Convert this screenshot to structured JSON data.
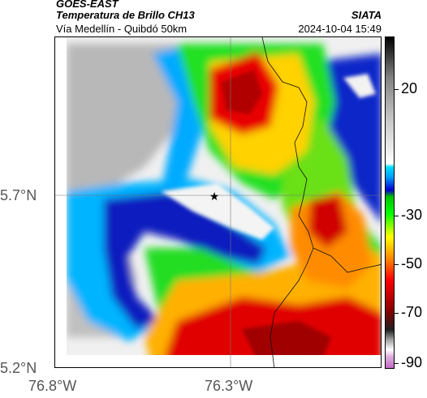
{
  "header": {
    "source": "GOES-EAST",
    "title": "Temperatura de Brillo CH13",
    "org": "SIATA",
    "subtitle": "Vía Medellín - Quibdó 50km",
    "datetime": "2024-10-04 15:49"
  },
  "axes": {
    "lat_labels": [
      "5.7°N",
      "5.2°N"
    ],
    "lon_labels": [
      "76.8°W",
      "76.3°W"
    ]
  },
  "colorbar": {
    "labels": [
      "20",
      "-30",
      "-50",
      "-70",
      "-90"
    ],
    "range": [
      -95,
      35
    ],
    "colors": [
      "#c060c0",
      "#ffffff",
      "#a0a0a0",
      "#202020",
      "#8b0000",
      "#ff0000",
      "#ffff00",
      "#00ff00",
      "#0000ff",
      "#00c0ff",
      "#ffffff",
      "#909090",
      "#000000"
    ]
  },
  "map": {
    "marker": "star-marker",
    "colors": {
      "cold_cloud_red": "#e80000",
      "dark_red": "#a00000",
      "orange": "#ff8c00",
      "yellow": "#ffe600",
      "green": "#1ee81e",
      "cyan": "#00c8ff",
      "blue": "#0a1ebe",
      "warm_gray": "#c8c8c8",
      "white": "#f4f4f4"
    }
  }
}
